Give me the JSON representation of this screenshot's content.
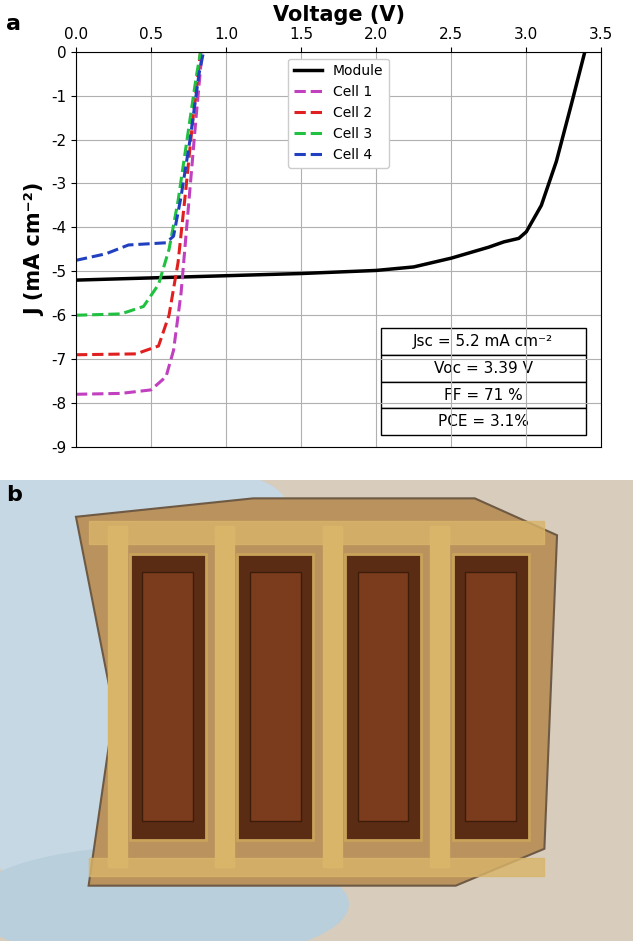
{
  "panel_labels": [
    "a",
    "b"
  ],
  "chart_data": {
    "type": "line",
    "x_label": "Voltage (V)",
    "y_label": "J (mA cm⁻²)",
    "xlim": [
      0,
      3.5
    ],
    "xticks": [
      {
        "value": 0,
        "label": "0.0"
      },
      0.5,
      {
        "value": 1,
        "label": "1.0"
      },
      1.5,
      {
        "value": 2,
        "label": "2.0"
      },
      2.5,
      {
        "value": 3,
        "label": "3.0"
      },
      3.5
    ],
    "ylim": [
      -9,
      0
    ],
    "yticks": [
      -9,
      -8,
      -7,
      -6,
      -5,
      -4,
      -3,
      -2,
      -1,
      0
    ],
    "grid": true,
    "legend": "upper center",
    "annotations": [
      "Jsc = 5.2 mA cm⁻²",
      "Voc = 3.39 V",
      "FF = 71 %",
      "PCE = 3.1%"
    ],
    "series": [
      {
        "name": "Module",
        "color": "#000000",
        "line_style": "solid",
        "x": [
          0,
          0.5,
          1.0,
          1.5,
          2.0,
          2.25,
          2.5,
          2.75,
          2.85,
          2.95,
          3.0,
          3.1,
          3.2,
          3.3,
          3.39
        ],
        "values": [
          -5.2,
          -5.15,
          -5.1,
          -5.05,
          -4.98,
          -4.9,
          -4.7,
          -4.45,
          -4.33,
          -4.25,
          -4.1,
          -3.5,
          -2.5,
          -1.2,
          0
        ]
      },
      {
        "name": "Cell 1",
        "color": "#c040c0",
        "line_style": "dashed",
        "x": [
          0,
          0.3,
          0.5,
          0.6,
          0.65,
          0.7,
          0.75,
          0.8,
          0.84
        ],
        "values": [
          -7.8,
          -7.78,
          -7.7,
          -7.4,
          -6.8,
          -5.5,
          -3.5,
          -1.5,
          0
        ]
      },
      {
        "name": "Cell 2",
        "color": "#e02020",
        "line_style": "dashed",
        "x": [
          0,
          0.4,
          0.55,
          0.62,
          0.68,
          0.73,
          0.78,
          0.83
        ],
        "values": [
          -6.9,
          -6.88,
          -6.7,
          -6.0,
          -4.8,
          -3.2,
          -1.5,
          0
        ]
      },
      {
        "name": "Cell 3",
        "color": "#20c040",
        "line_style": "dashed",
        "x": [
          0,
          0.3,
          0.45,
          0.55,
          0.62,
          0.68,
          0.74,
          0.8,
          0.83
        ],
        "values": [
          -6.0,
          -5.97,
          -5.8,
          -5.3,
          -4.5,
          -3.4,
          -2.0,
          -0.6,
          0
        ]
      },
      {
        "name": "Cell 4",
        "color": "#2040c0",
        "line_style": "dashed",
        "x": [
          0,
          0.2,
          0.35,
          0.6,
          0.65,
          0.7,
          0.76,
          0.82,
          0.85
        ],
        "values": [
          -4.75,
          -4.6,
          -4.4,
          -4.35,
          -4.2,
          -3.3,
          -2.0,
          -0.5,
          0
        ]
      }
    ]
  }
}
